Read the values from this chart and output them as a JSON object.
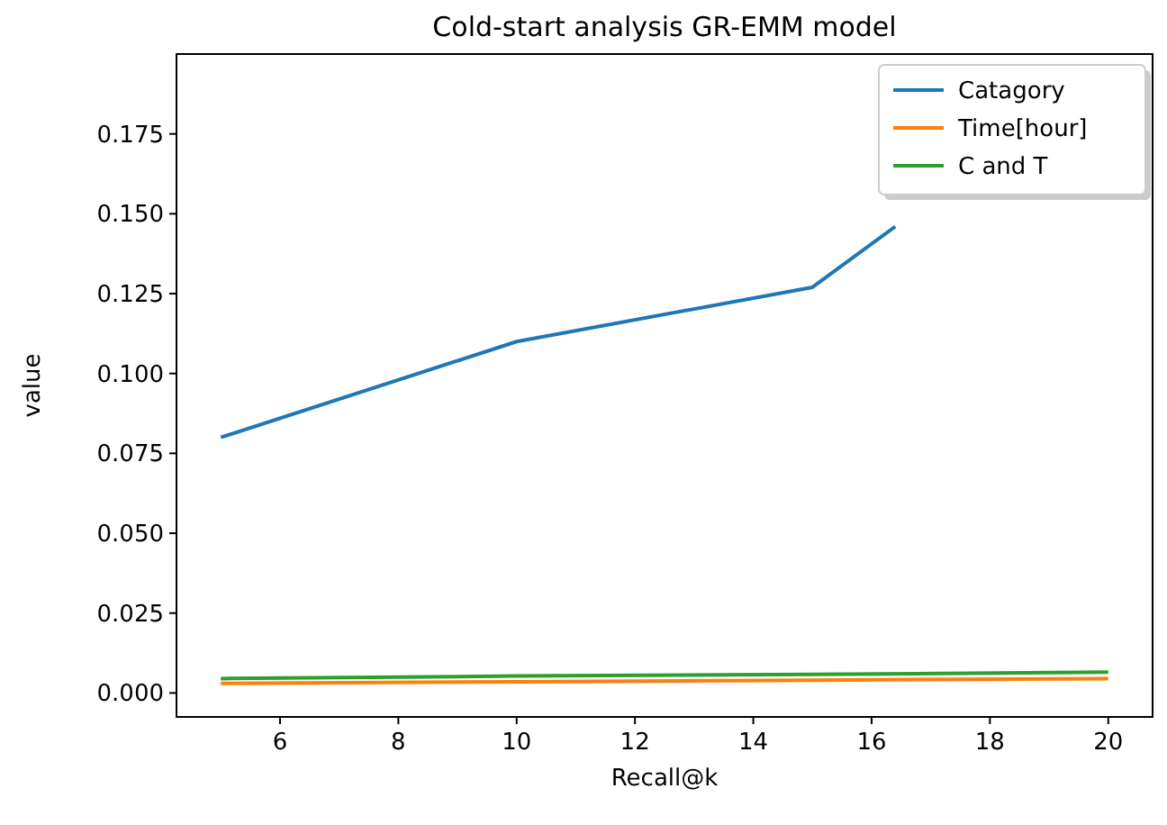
{
  "chart_data": {
    "type": "line",
    "title": "Cold-start analysis GR-EMM model",
    "xlabel": "Recall@k",
    "ylabel": "value",
    "x": [
      5,
      10,
      15,
      20
    ],
    "series": [
      {
        "name": "Catagory",
        "color": "#1f77b4",
        "x": [
          5,
          10,
          15,
          16.4
        ],
        "values": [
          0.08,
          0.11,
          0.127,
          0.146
        ]
      },
      {
        "name": "Time[hour]",
        "color": "#ff7f0e",
        "values": [
          0.003,
          0.0035,
          0.004,
          0.0045
        ]
      },
      {
        "name": "C and T",
        "color": "#2ca02c",
        "values": [
          0.0045,
          0.0053,
          0.0058,
          0.0065
        ]
      }
    ],
    "xlim": [
      4.25,
      20.75
    ],
    "ylim": [
      -0.0075,
      0.2
    ],
    "xticks": [
      6,
      8,
      10,
      12,
      14,
      16,
      18,
      20
    ],
    "yticks": [
      {
        "value": 0,
        "label": "0.000"
      },
      {
        "value": 0.025,
        "label": "0.025"
      },
      {
        "value": 0.05,
        "label": "0.050"
      },
      {
        "value": 0.075,
        "label": "0.075"
      },
      {
        "value": 0.1,
        "label": "0.100"
      },
      {
        "value": 0.125,
        "label": "0.125"
      },
      {
        "value": 0.15,
        "label": "0.150"
      },
      {
        "value": 0.175,
        "label": "0.175"
      }
    ],
    "legend": "top right",
    "grid": false
  }
}
